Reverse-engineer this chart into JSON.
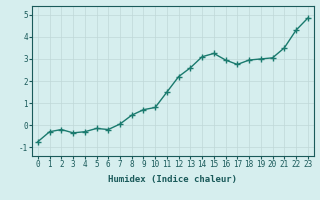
{
  "x": [
    0,
    1,
    2,
    3,
    4,
    5,
    6,
    7,
    8,
    9,
    10,
    11,
    12,
    13,
    14,
    15,
    16,
    17,
    18,
    19,
    20,
    21,
    22,
    23
  ],
  "y": [
    -0.75,
    -0.3,
    -0.2,
    -0.35,
    -0.3,
    -0.15,
    -0.2,
    0.05,
    0.45,
    0.7,
    0.8,
    1.5,
    2.2,
    2.6,
    3.1,
    3.25,
    2.95,
    2.75,
    2.95,
    3.0,
    3.05,
    3.5,
    4.3,
    4.85
  ],
  "line_color": "#1a7a6e",
  "marker": "+",
  "bg_color": "#d6eeee",
  "grid_color": "#c0d8d8",
  "xlabel": "Humidex (Indice chaleur)",
  "xlim": [
    -0.5,
    23.5
  ],
  "ylim": [
    -1.4,
    5.4
  ],
  "yticks": [
    -1,
    0,
    1,
    2,
    3,
    4,
    5
  ],
  "xticks": [
    0,
    1,
    2,
    3,
    4,
    5,
    6,
    7,
    8,
    9,
    10,
    11,
    12,
    13,
    14,
    15,
    16,
    17,
    18,
    19,
    20,
    21,
    22,
    23
  ],
  "font_color": "#1a5a5a",
  "linewidth": 1.0,
  "markersize": 4,
  "tick_fontsize": 5.5,
  "xlabel_fontsize": 6.5
}
